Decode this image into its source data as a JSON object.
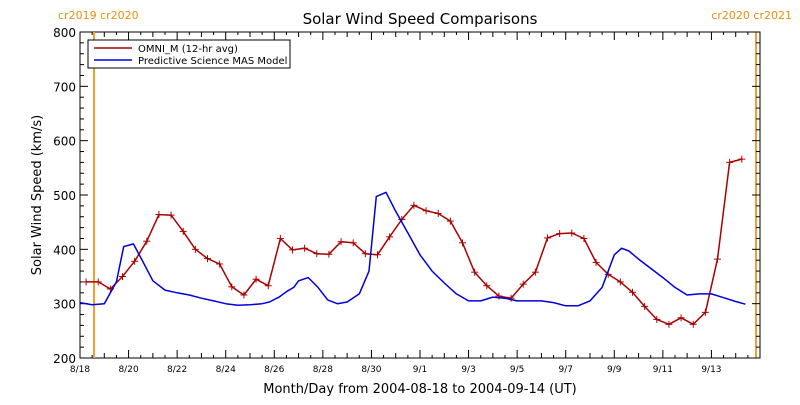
{
  "corner_labels": {
    "left": "cr2019 cr2020",
    "right": "cr2020 cr2021"
  },
  "colors": {
    "omni": "#aa0000",
    "mas": "#0000dd",
    "carrington_marker": "#f0a030"
  },
  "chart_data": {
    "type": "line",
    "title": "Solar Wind Speed Comparisons",
    "xlabel": "Month/Day from 2004-08-18 to 2004-09-14 (UT)",
    "ylabel": "Solar Wind Speed (km/s)",
    "xlim": [
      "2004-08-18",
      "2004-09-15"
    ],
    "ylim": [
      200,
      800
    ],
    "x_ticks": [
      "8/18",
      "8/20",
      "8/22",
      "8/24",
      "8/26",
      "8/28",
      "8/30",
      "9/1",
      "9/3",
      "9/5",
      "9/7",
      "9/9",
      "9/11",
      "9/13"
    ],
    "y_ticks": [
      200,
      300,
      400,
      500,
      600,
      700,
      800
    ],
    "legend": {
      "position": "top-left",
      "entries": [
        "OMNI_M (12-hr avg)",
        "Predictive Science MAS Model"
      ]
    },
    "x_unit": "days after 2004-08-18 00:00 UT",
    "series": [
      {
        "name": "OMNI_M (12-hr avg)",
        "markers": "plus",
        "x": [
          0.25,
          0.75,
          1.25,
          1.75,
          2.25,
          2.75,
          3.25,
          3.75,
          4.25,
          4.75,
          5.25,
          5.75,
          6.25,
          6.75,
          7.25,
          7.75,
          8.25,
          8.75,
          9.25,
          9.75,
          10.25,
          10.75,
          11.25,
          11.75,
          12.25,
          12.75,
          13.25,
          13.75,
          14.25,
          14.75,
          15.25,
          15.75,
          16.25,
          16.75,
          17.25,
          17.75,
          18.25,
          18.75,
          19.25,
          19.75,
          20.25,
          20.75,
          21.25,
          21.75,
          22.25,
          22.75,
          23.25,
          23.75,
          24.25,
          24.75,
          25.25,
          25.75,
          26.25,
          26.75,
          27.25
        ],
        "values": [
          340,
          340,
          327,
          350,
          378,
          415,
          464,
          463,
          433,
          400,
          383,
          373,
          331,
          316,
          345,
          333,
          420,
          399,
          402,
          392,
          391,
          414,
          412,
          392,
          390,
          423,
          455,
          481,
          471,
          466,
          452,
          412,
          358,
          333,
          314,
          310,
          336,
          358,
          421,
          429,
          430,
          420,
          376,
          354,
          340,
          321,
          295,
          271,
          262,
          274,
          262,
          284,
          382,
          560,
          566
        ]
      },
      {
        "name": "Predictive Science MAS Model",
        "x": [
          0,
          0.5,
          1,
          1.5,
          1.8,
          2.2,
          2.5,
          3,
          3.5,
          4,
          4.5,
          5,
          5.5,
          6,
          6.5,
          7,
          7.5,
          7.8,
          8.2,
          8.5,
          8.8,
          9,
          9.4,
          9.8,
          10.2,
          10.6,
          11,
          11.5,
          11.9,
          12.2,
          12.6,
          13,
          13.5,
          14,
          14.5,
          15,
          15.5,
          16,
          16.5,
          17,
          17.5,
          18,
          18.5,
          19,
          19.5,
          20,
          20.5,
          21,
          21.5,
          22,
          22.3,
          22.6,
          23,
          23.5,
          24,
          24.5,
          25,
          25.5,
          26,
          26.5,
          27,
          27.4
        ],
        "values": [
          302,
          298,
          300,
          340,
          405,
          410,
          385,
          342,
          325,
          320,
          316,
          310,
          305,
          300,
          297,
          298,
          300,
          303,
          312,
          322,
          330,
          342,
          348,
          330,
          307,
          300,
          303,
          318,
          360,
          497,
          505,
          470,
          430,
          390,
          360,
          338,
          318,
          305,
          305,
          312,
          310,
          305,
          305,
          305,
          302,
          296,
          296,
          305,
          330,
          390,
          402,
          397,
          382,
          365,
          348,
          330,
          316,
          318,
          318,
          311,
          304,
          299
        ]
      }
    ]
  }
}
